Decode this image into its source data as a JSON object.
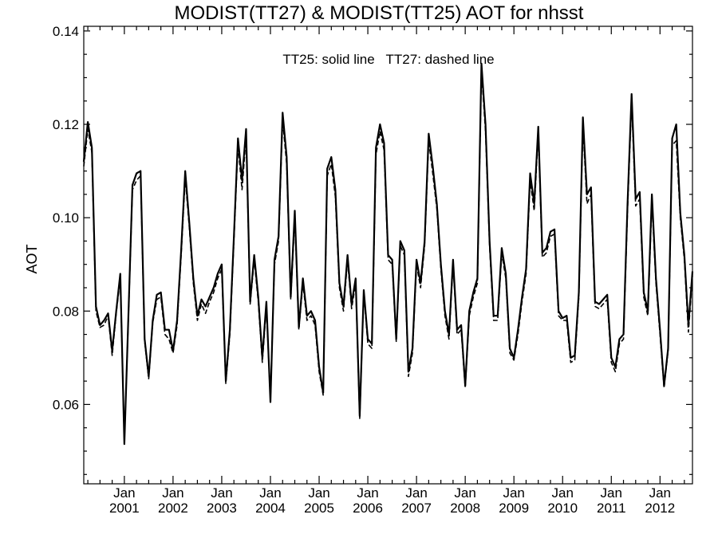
{
  "chart_data": {
    "type": "line",
    "title": "MODIST(TT27) & MODIST(TT25)  AOT for nhsst",
    "annotation": "TT25: solid line   TT27: dashed line",
    "xlabel": "",
    "ylabel": "AOT",
    "ylim": [
      0.043,
      0.141
    ],
    "yticks": [
      "0.06",
      "0.08",
      "0.10",
      "0.12",
      "0.14"
    ],
    "yticks_values": [
      0.06,
      0.08,
      0.1,
      0.12,
      0.14
    ],
    "xrange_months": [
      "2000-03",
      "2012-09"
    ],
    "xticks": [
      {
        "month": "Jan",
        "year": "2001",
        "date": "2001-01"
      },
      {
        "month": "Jan",
        "year": "2002",
        "date": "2002-01"
      },
      {
        "month": "Jan",
        "year": "2003",
        "date": "2003-01"
      },
      {
        "month": "Jan",
        "year": "2004",
        "date": "2004-01"
      },
      {
        "month": "Jan",
        "year": "2005",
        "date": "2005-01"
      },
      {
        "month": "Jan",
        "year": "2006",
        "date": "2006-01"
      },
      {
        "month": "Jan",
        "year": "2007",
        "date": "2007-01"
      },
      {
        "month": "Jan",
        "year": "2008",
        "date": "2008-01"
      },
      {
        "month": "Jan",
        "year": "2009",
        "date": "2009-01"
      },
      {
        "month": "Jan",
        "year": "2010",
        "date": "2010-01"
      },
      {
        "month": "Jan",
        "year": "2011",
        "date": "2011-01"
      },
      {
        "month": "Jan",
        "year": "2012",
        "date": "2012-01"
      }
    ],
    "grid": false,
    "x": [
      "2000-03",
      "2000-04",
      "2000-05",
      "2000-06",
      "2000-07",
      "2000-08",
      "2000-09",
      "2000-10",
      "2000-11",
      "2000-12",
      "2001-01",
      "2001-02",
      "2001-03",
      "2001-04",
      "2001-05",
      "2001-06",
      "2001-07",
      "2001-08",
      "2001-09",
      "2001-10",
      "2001-11",
      "2001-12",
      "2002-01",
      "2002-02",
      "2002-03",
      "2002-04",
      "2002-05",
      "2002-06",
      "2002-07",
      "2002-08",
      "2002-09",
      "2002-10",
      "2002-11",
      "2002-12",
      "2003-01",
      "2003-02",
      "2003-03",
      "2003-04",
      "2003-05",
      "2003-06",
      "2003-07",
      "2003-08",
      "2003-09",
      "2003-10",
      "2003-11",
      "2003-12",
      "2004-01",
      "2004-02",
      "2004-03",
      "2004-04",
      "2004-05",
      "2004-06",
      "2004-07",
      "2004-08",
      "2004-09",
      "2004-10",
      "2004-11",
      "2004-12",
      "2005-01",
      "2005-02",
      "2005-03",
      "2005-04",
      "2005-05",
      "2005-06",
      "2005-07",
      "2005-08",
      "2005-09",
      "2005-10",
      "2005-11",
      "2005-12",
      "2006-01",
      "2006-02",
      "2006-03",
      "2006-04",
      "2006-05",
      "2006-06",
      "2006-07",
      "2006-08",
      "2006-09",
      "2006-10",
      "2006-11",
      "2006-12",
      "2007-01",
      "2007-02",
      "2007-03",
      "2007-04",
      "2007-05",
      "2007-06",
      "2007-07",
      "2007-08",
      "2007-09",
      "2007-10",
      "2007-11",
      "2007-12",
      "2008-01",
      "2008-02",
      "2008-03",
      "2008-04",
      "2008-05",
      "2008-06",
      "2008-07",
      "2008-08",
      "2008-09",
      "2008-10",
      "2008-11",
      "2008-12",
      "2009-01",
      "2009-02",
      "2009-03",
      "2009-04",
      "2009-05",
      "2009-06",
      "2009-07",
      "2009-08",
      "2009-09",
      "2009-10",
      "2009-11",
      "2009-12",
      "2010-01",
      "2010-02",
      "2010-03",
      "2010-04",
      "2010-05",
      "2010-06",
      "2010-07",
      "2010-08",
      "2010-09",
      "2010-10",
      "2010-11",
      "2010-12",
      "2011-01",
      "2011-02",
      "2011-03",
      "2011-04",
      "2011-05",
      "2011-06",
      "2011-07",
      "2011-08",
      "2011-09",
      "2011-10",
      "2011-11",
      "2011-12",
      "2012-01",
      "2012-02",
      "2012-03",
      "2012-04",
      "2012-05",
      "2012-06",
      "2012-07",
      "2012-08",
      "2012-09"
    ],
    "series": [
      {
        "name": "TT25",
        "style": "solid",
        "color": "#000000",
        "values": [
          0.112,
          0.1205,
          0.115,
          0.081,
          0.077,
          0.078,
          0.0795,
          0.0715,
          0.08,
          0.088,
          0.0515,
          0.079,
          0.107,
          0.1095,
          0.11,
          0.074,
          0.066,
          0.078,
          0.0835,
          0.084,
          0.076,
          0.076,
          0.0715,
          0.078,
          0.093,
          0.11,
          0.099,
          0.087,
          0.079,
          0.0825,
          0.081,
          0.083,
          0.085,
          0.088,
          0.09,
          0.065,
          0.076,
          0.096,
          0.117,
          0.108,
          0.119,
          0.082,
          0.092,
          0.083,
          0.07,
          0.082,
          0.0605,
          0.091,
          0.096,
          0.1225,
          0.113,
          0.083,
          0.1015,
          0.0765,
          0.087,
          0.079,
          0.08,
          0.078,
          0.068,
          0.0625,
          0.1105,
          0.113,
          0.106,
          0.086,
          0.081,
          0.092,
          0.0815,
          0.087,
          0.0575,
          0.0845,
          0.074,
          0.073,
          0.115,
          0.12,
          0.116,
          0.092,
          0.091,
          0.074,
          0.095,
          0.093,
          0.067,
          0.072,
          0.091,
          0.086,
          0.095,
          0.118,
          0.111,
          0.103,
          0.09,
          0.08,
          0.075,
          0.091,
          0.076,
          0.077,
          0.064,
          0.08,
          0.084,
          0.087,
          0.133,
          0.12,
          0.095,
          0.079,
          0.079,
          0.0935,
          0.088,
          0.072,
          0.07,
          0.076,
          0.083,
          0.089,
          0.1095,
          0.103,
          0.1195,
          0.0925,
          0.0935,
          0.097,
          0.0975,
          0.08,
          0.0785,
          0.079,
          0.07,
          0.0705,
          0.084,
          0.1215,
          0.105,
          0.1065,
          0.082,
          0.0815,
          0.0825,
          0.0835,
          0.07,
          0.068,
          0.074,
          0.075,
          0.103,
          0.1265,
          0.104,
          0.1055,
          0.084,
          0.08,
          0.105,
          0.087,
          0.076,
          0.064,
          0.072,
          0.117,
          0.12,
          0.101,
          0.092,
          0.077,
          0.0885
        ]
      },
      {
        "name": "TT27",
        "style": "dashed",
        "color": "#000000",
        "values": [
          0.111,
          0.119,
          0.114,
          0.08,
          0.0765,
          0.077,
          0.079,
          0.0705,
          0.0795,
          0.087,
          0.052,
          0.0785,
          0.106,
          0.108,
          0.109,
          0.0735,
          0.0655,
          0.0775,
          0.0825,
          0.083,
          0.075,
          0.074,
          0.071,
          0.077,
          0.092,
          0.1085,
          0.098,
          0.086,
          0.078,
          0.0815,
          0.0795,
          0.082,
          0.084,
          0.087,
          0.089,
          0.0645,
          0.075,
          0.095,
          0.1155,
          0.106,
          0.1175,
          0.0815,
          0.091,
          0.082,
          0.069,
          0.081,
          0.061,
          0.09,
          0.095,
          0.121,
          0.1115,
          0.0825,
          0.1,
          0.076,
          0.086,
          0.078,
          0.079,
          0.077,
          0.067,
          0.062,
          0.109,
          0.1115,
          0.1045,
          0.085,
          0.08,
          0.091,
          0.0805,
          0.086,
          0.057,
          0.084,
          0.073,
          0.072,
          0.1135,
          0.1185,
          0.1145,
          0.091,
          0.09,
          0.0735,
          0.094,
          0.092,
          0.066,
          0.071,
          0.09,
          0.085,
          0.094,
          0.1165,
          0.1095,
          0.102,
          0.089,
          0.079,
          0.074,
          0.09,
          0.075,
          0.076,
          0.0635,
          0.079,
          0.083,
          0.086,
          0.1315,
          0.1185,
          0.094,
          0.078,
          0.078,
          0.0925,
          0.087,
          0.071,
          0.0695,
          0.075,
          0.082,
          0.088,
          0.108,
          0.1015,
          0.118,
          0.0915,
          0.0925,
          0.096,
          0.0965,
          0.079,
          0.078,
          0.078,
          0.069,
          0.0695,
          0.083,
          0.12,
          0.103,
          0.105,
          0.081,
          0.0805,
          0.0815,
          0.0825,
          0.069,
          0.067,
          0.073,
          0.074,
          0.1015,
          0.125,
          0.1025,
          0.104,
          0.083,
          0.079,
          0.1035,
          0.086,
          0.075,
          0.0635,
          0.0715,
          0.1155,
          0.1165,
          0.1,
          0.091,
          0.0755,
          0.0875
        ]
      }
    ]
  }
}
